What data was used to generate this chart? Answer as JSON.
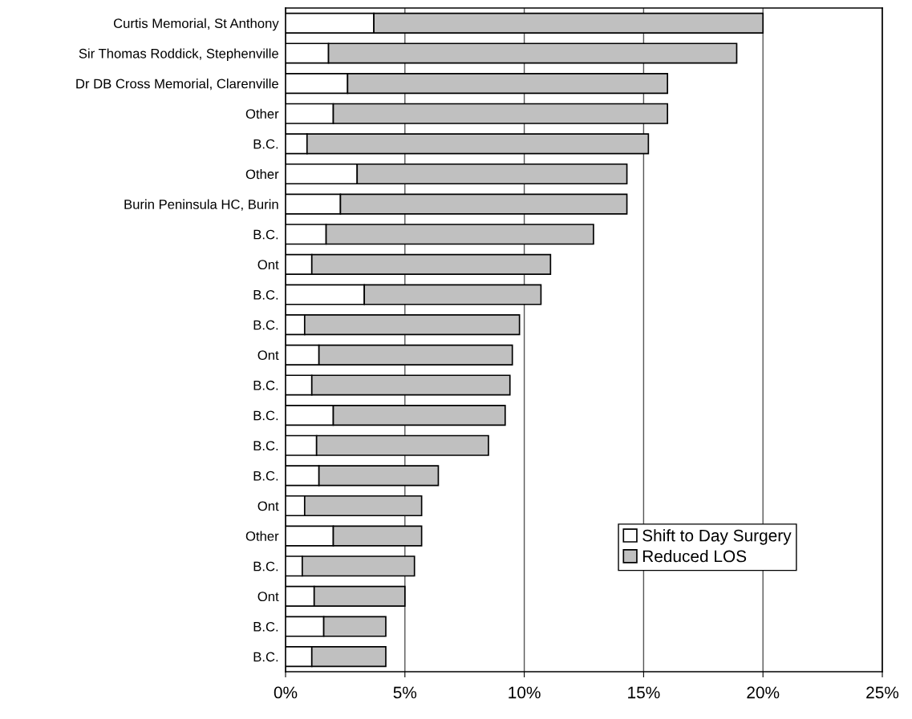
{
  "chart_data": {
    "type": "bar",
    "orientation": "horizontal",
    "stacked": true,
    "categories": [
      "Curtis Memorial, St Anthony",
      "Sir Thomas Roddick, Stephenville",
      "Dr DB Cross Memorial, Clarenville",
      "Other",
      "B.C.",
      "Other",
      "Burin Peninsula HC, Burin",
      "B.C.",
      "Ont",
      "B.C.",
      "B.C.",
      "Ont",
      "B.C.",
      "B.C.",
      "B.C.",
      "B.C.",
      "Ont",
      "Other",
      "B.C.",
      "Ont",
      "B.C.",
      "B.C."
    ],
    "series": [
      {
        "name": "Shift to Day Surgery",
        "color": "#ffffff",
        "values": [
          3.7,
          1.8,
          2.6,
          2.0,
          0.9,
          3.0,
          2.3,
          1.7,
          1.1,
          3.3,
          0.8,
          1.4,
          1.1,
          2.0,
          1.3,
          1.4,
          0.8,
          2.0,
          0.7,
          1.2,
          1.6,
          1.1
        ]
      },
      {
        "name": "Reduced LOS",
        "color": "#c0c0c0",
        "values": [
          16.3,
          17.1,
          13.4,
          14.0,
          14.3,
          11.3,
          12.0,
          11.2,
          10.0,
          7.4,
          9.0,
          8.1,
          8.3,
          7.2,
          7.2,
          5.0,
          4.9,
          3.7,
          4.7,
          3.8,
          2.6,
          3.1
        ]
      }
    ],
    "xlim": [
      0,
      25
    ],
    "xticks": [
      {
        "value": 0,
        "label": "0%"
      },
      {
        "value": 5,
        "label": "5%"
      },
      {
        "value": 10,
        "label": "10%"
      },
      {
        "value": 15,
        "label": "15%"
      },
      {
        "value": 20,
        "label": "20%"
      },
      {
        "value": 25,
        "label": "25%"
      }
    ],
    "grid": "x",
    "legend": "bottom right"
  }
}
